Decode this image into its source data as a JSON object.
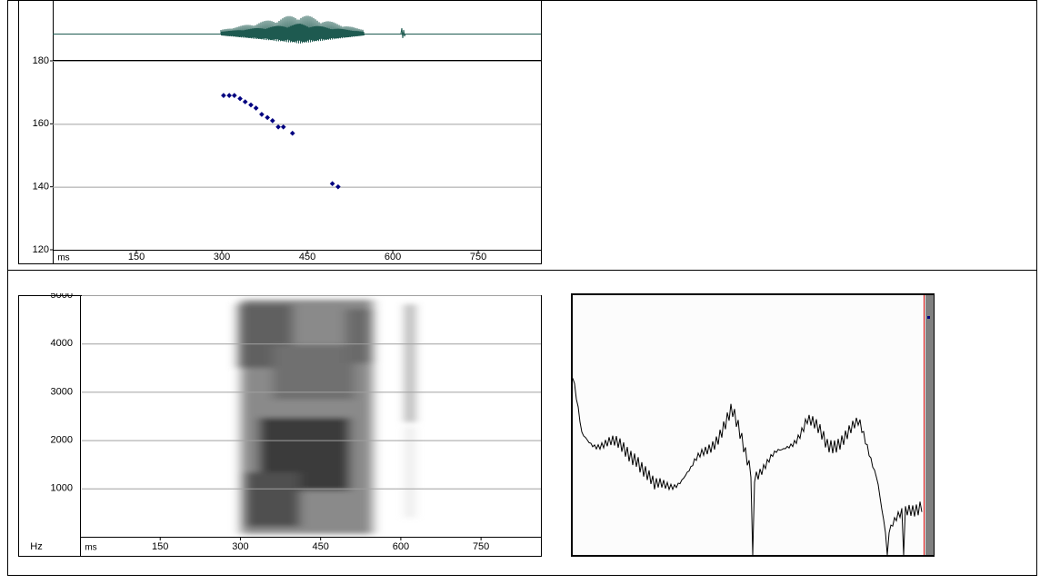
{
  "chart_data": [
    {
      "type": "scatter",
      "x_label": "ms",
      "x": [
        303,
        313,
        322,
        332,
        341,
        351,
        360,
        370,
        380,
        389,
        399,
        408,
        424,
        494,
        504
      ],
      "values": [
        169,
        169,
        169,
        168,
        167,
        166,
        165,
        163,
        162,
        161,
        159,
        159,
        157,
        141,
        140
      ],
      "color": "#000080",
      "xlim": [
        0,
        860
      ],
      "xticks": [
        150,
        300,
        450,
        600,
        750
      ],
      "ylim": [
        120,
        180
      ],
      "yticks": [
        120,
        140,
        160,
        180
      ],
      "grid": true
    },
    {
      "type": "spectrogram",
      "x_label": "ms",
      "y_label": "Hz",
      "xlim": [
        0,
        862
      ],
      "xticks": [
        150,
        300,
        450,
        600,
        750
      ],
      "ylim": [
        0,
        5000
      ],
      "yticks": [
        1000,
        2000,
        3000,
        4000,
        5000
      ],
      "grid": true
    }
  ]
}
